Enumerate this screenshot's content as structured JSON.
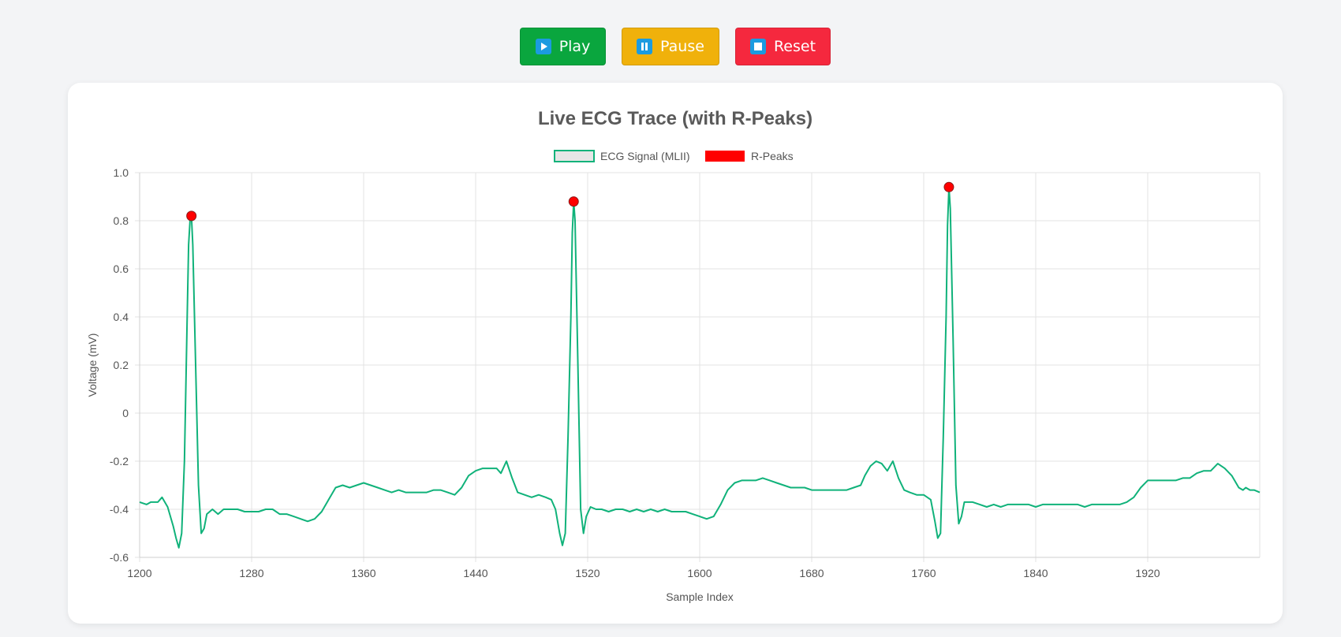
{
  "toolbar": {
    "play_label": "Play",
    "pause_label": "Pause",
    "reset_label": "Reset",
    "play_icon": "play-icon",
    "pause_icon": "pause-icon",
    "reset_icon": "stop-icon",
    "play_color": "#0aa63e",
    "pause_color": "#f0b10b",
    "reset_color": "#f5283e"
  },
  "chart_data": {
    "type": "line",
    "title": "Live ECG Trace (with R-Peaks)",
    "xlabel": "Sample Index",
    "ylabel": "Voltage (mV)",
    "xlim": [
      1200,
      2000
    ],
    "ylim": [
      -0.6,
      1.0
    ],
    "x_ticks": [
      "1200",
      "1280",
      "1360",
      "1440",
      "1520",
      "1600",
      "1680",
      "1760",
      "1840",
      "1920"
    ],
    "y_ticks": [
      "1.0",
      "0.8",
      "0.6",
      "0.4",
      "0.2",
      "0",
      "-0.2",
      "-0.4",
      "-0.6"
    ],
    "grid": true,
    "legend_position": "top",
    "series": [
      {
        "name": "ECG Signal (MLII)",
        "color": "#10b27a",
        "points": [
          [
            1200,
            -0.37
          ],
          [
            1205,
            -0.38
          ],
          [
            1208,
            -0.37
          ],
          [
            1213,
            -0.37
          ],
          [
            1216,
            -0.35
          ],
          [
            1220,
            -0.39
          ],
          [
            1224,
            -0.47
          ],
          [
            1226,
            -0.52
          ],
          [
            1228,
            -0.56
          ],
          [
            1230,
            -0.5
          ],
          [
            1232,
            -0.2
          ],
          [
            1234,
            0.4
          ],
          [
            1235,
            0.7
          ],
          [
            1236,
            0.8
          ],
          [
            1237,
            0.82
          ],
          [
            1238,
            0.7
          ],
          [
            1240,
            0.2
          ],
          [
            1242,
            -0.3
          ],
          [
            1244,
            -0.5
          ],
          [
            1246,
            -0.48
          ],
          [
            1248,
            -0.42
          ],
          [
            1252,
            -0.4
          ],
          [
            1256,
            -0.42
          ],
          [
            1260,
            -0.4
          ],
          [
            1265,
            -0.4
          ],
          [
            1270,
            -0.4
          ],
          [
            1275,
            -0.41
          ],
          [
            1280,
            -0.41
          ],
          [
            1285,
            -0.41
          ],
          [
            1290,
            -0.4
          ],
          [
            1295,
            -0.4
          ],
          [
            1300,
            -0.42
          ],
          [
            1305,
            -0.42
          ],
          [
            1310,
            -0.43
          ],
          [
            1315,
            -0.44
          ],
          [
            1320,
            -0.45
          ],
          [
            1325,
            -0.44
          ],
          [
            1330,
            -0.41
          ],
          [
            1335,
            -0.36
          ],
          [
            1340,
            -0.31
          ],
          [
            1345,
            -0.3
          ],
          [
            1350,
            -0.31
          ],
          [
            1355,
            -0.3
          ],
          [
            1360,
            -0.29
          ],
          [
            1365,
            -0.3
          ],
          [
            1370,
            -0.31
          ],
          [
            1375,
            -0.32
          ],
          [
            1380,
            -0.33
          ],
          [
            1385,
            -0.32
          ],
          [
            1390,
            -0.33
          ],
          [
            1395,
            -0.33
          ],
          [
            1400,
            -0.33
          ],
          [
            1405,
            -0.33
          ],
          [
            1410,
            -0.32
          ],
          [
            1415,
            -0.32
          ],
          [
            1420,
            -0.33
          ],
          [
            1425,
            -0.34
          ],
          [
            1430,
            -0.31
          ],
          [
            1435,
            -0.26
          ],
          [
            1440,
            -0.24
          ],
          [
            1445,
            -0.23
          ],
          [
            1450,
            -0.23
          ],
          [
            1455,
            -0.23
          ],
          [
            1458,
            -0.25
          ],
          [
            1462,
            -0.2
          ],
          [
            1466,
            -0.27
          ],
          [
            1470,
            -0.33
          ],
          [
            1475,
            -0.34
          ],
          [
            1480,
            -0.35
          ],
          [
            1485,
            -0.34
          ],
          [
            1490,
            -0.35
          ],
          [
            1494,
            -0.36
          ],
          [
            1497,
            -0.4
          ],
          [
            1500,
            -0.5
          ],
          [
            1502,
            -0.55
          ],
          [
            1504,
            -0.5
          ],
          [
            1506,
            -0.1
          ],
          [
            1508,
            0.4
          ],
          [
            1509,
            0.75
          ],
          [
            1510,
            0.88
          ],
          [
            1511,
            0.8
          ],
          [
            1513,
            0.2
          ],
          [
            1515,
            -0.4
          ],
          [
            1517,
            -0.5
          ],
          [
            1519,
            -0.43
          ],
          [
            1522,
            -0.39
          ],
          [
            1526,
            -0.4
          ],
          [
            1530,
            -0.4
          ],
          [
            1535,
            -0.41
          ],
          [
            1540,
            -0.4
          ],
          [
            1545,
            -0.4
          ],
          [
            1550,
            -0.41
          ],
          [
            1555,
            -0.4
          ],
          [
            1560,
            -0.41
          ],
          [
            1565,
            -0.4
          ],
          [
            1570,
            -0.41
          ],
          [
            1575,
            -0.4
          ],
          [
            1580,
            -0.41
          ],
          [
            1585,
            -0.41
          ],
          [
            1590,
            -0.41
          ],
          [
            1595,
            -0.42
          ],
          [
            1600,
            -0.43
          ],
          [
            1605,
            -0.44
          ],
          [
            1610,
            -0.43
          ],
          [
            1615,
            -0.38
          ],
          [
            1620,
            -0.32
          ],
          [
            1625,
            -0.29
          ],
          [
            1630,
            -0.28
          ],
          [
            1635,
            -0.28
          ],
          [
            1640,
            -0.28
          ],
          [
            1645,
            -0.27
          ],
          [
            1650,
            -0.28
          ],
          [
            1655,
            -0.29
          ],
          [
            1660,
            -0.3
          ],
          [
            1665,
            -0.31
          ],
          [
            1670,
            -0.31
          ],
          [
            1675,
            -0.31
          ],
          [
            1680,
            -0.32
          ],
          [
            1685,
            -0.32
          ],
          [
            1690,
            -0.32
          ],
          [
            1695,
            -0.32
          ],
          [
            1700,
            -0.32
          ],
          [
            1705,
            -0.32
          ],
          [
            1710,
            -0.31
          ],
          [
            1715,
            -0.3
          ],
          [
            1718,
            -0.26
          ],
          [
            1722,
            -0.22
          ],
          [
            1726,
            -0.2
          ],
          [
            1730,
            -0.21
          ],
          [
            1734,
            -0.24
          ],
          [
            1738,
            -0.2
          ],
          [
            1742,
            -0.27
          ],
          [
            1746,
            -0.32
          ],
          [
            1750,
            -0.33
          ],
          [
            1755,
            -0.34
          ],
          [
            1760,
            -0.34
          ],
          [
            1765,
            -0.36
          ],
          [
            1768,
            -0.45
          ],
          [
            1770,
            -0.52
          ],
          [
            1772,
            -0.5
          ],
          [
            1774,
            -0.1
          ],
          [
            1776,
            0.4
          ],
          [
            1777,
            0.78
          ],
          [
            1778,
            0.94
          ],
          [
            1779,
            0.85
          ],
          [
            1781,
            0.3
          ],
          [
            1783,
            -0.3
          ],
          [
            1785,
            -0.46
          ],
          [
            1787,
            -0.43
          ],
          [
            1789,
            -0.37
          ],
          [
            1795,
            -0.37
          ],
          [
            1800,
            -0.38
          ],
          [
            1805,
            -0.39
          ],
          [
            1810,
            -0.38
          ],
          [
            1815,
            -0.39
          ],
          [
            1820,
            -0.38
          ],
          [
            1825,
            -0.38
          ],
          [
            1830,
            -0.38
          ],
          [
            1835,
            -0.38
          ],
          [
            1840,
            -0.39
          ],
          [
            1845,
            -0.38
          ],
          [
            1850,
            -0.38
          ],
          [
            1855,
            -0.38
          ],
          [
            1860,
            -0.38
          ],
          [
            1865,
            -0.38
          ],
          [
            1870,
            -0.38
          ],
          [
            1875,
            -0.39
          ],
          [
            1880,
            -0.38
          ],
          [
            1885,
            -0.38
          ],
          [
            1890,
            -0.38
          ],
          [
            1895,
            -0.38
          ],
          [
            1900,
            -0.38
          ],
          [
            1905,
            -0.37
          ],
          [
            1910,
            -0.35
          ],
          [
            1915,
            -0.31
          ],
          [
            1920,
            -0.28
          ],
          [
            1925,
            -0.28
          ],
          [
            1930,
            -0.28
          ],
          [
            1935,
            -0.28
          ],
          [
            1940,
            -0.28
          ],
          [
            1945,
            -0.27
          ],
          [
            1950,
            -0.27
          ],
          [
            1955,
            -0.25
          ],
          [
            1960,
            -0.24
          ],
          [
            1965,
            -0.24
          ],
          [
            1970,
            -0.21
          ],
          [
            1975,
            -0.23
          ],
          [
            1980,
            -0.26
          ],
          [
            1985,
            -0.31
          ],
          [
            1988,
            -0.32
          ],
          [
            1990,
            -0.31
          ],
          [
            1993,
            -0.32
          ],
          [
            1996,
            -0.32
          ],
          [
            2000,
            -0.33
          ]
        ]
      },
      {
        "name": "R-Peaks",
        "color": "#ff0000",
        "points": [
          [
            1237,
            0.82
          ],
          [
            1510,
            0.88
          ],
          [
            1778,
            0.94
          ]
        ]
      }
    ]
  }
}
